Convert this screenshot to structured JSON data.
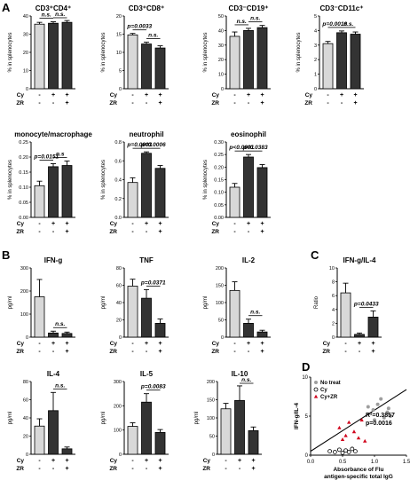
{
  "panel_letters": [
    "A",
    "B",
    "C",
    "D"
  ],
  "groups": [
    "Cy",
    "ZR"
  ],
  "signs": [
    "-",
    "+"
  ],
  "chart_data": [
    {
      "id": "cd4",
      "type": "bar",
      "title": "CD3⁺CD4⁺",
      "ylabel": "% in splenocytes",
      "ylim": [
        0,
        40
      ],
      "yticks": [
        "0",
        "10",
        "20",
        "30",
        "40"
      ],
      "values": [
        35.5,
        36,
        36.5
      ],
      "errors": [
        1,
        0.8,
        1
      ],
      "cy": [
        "-",
        "+",
        "+"
      ],
      "zr": [
        "-",
        "-",
        "+"
      ],
      "annotations": [
        {
          "text": "n.s.",
          "from": 0,
          "to": 1
        },
        {
          "text": "n.s.",
          "from": 1,
          "to": 2
        }
      ]
    },
    {
      "id": "cd8",
      "type": "bar",
      "title": "CD3⁺CD8⁺",
      "ylabel": "% in splenocytes",
      "ylim": [
        0,
        20
      ],
      "yticks": [
        "0",
        "5",
        "10",
        "15",
        "20"
      ],
      "values": [
        14.8,
        12.3,
        11.2
      ],
      "errors": [
        0.4,
        0.5,
        0.6
      ],
      "cy": [
        "-",
        "+",
        "+"
      ],
      "zr": [
        "-",
        "-",
        "+"
      ],
      "annotations": [
        {
          "text": "p=0.0033",
          "from": 0,
          "to": 1
        },
        {
          "text": "n.s.",
          "from": 1,
          "to": 2
        }
      ]
    },
    {
      "id": "cd19",
      "type": "bar",
      "title": "CD3⁻CD19⁺",
      "ylabel": "% in splenocytes",
      "ylim": [
        0,
        50
      ],
      "yticks": [
        "0",
        "10",
        "20",
        "30",
        "40",
        "50"
      ],
      "values": [
        36,
        40,
        42
      ],
      "errors": [
        3,
        1.5,
        1.5
      ],
      "cy": [
        "-",
        "+",
        "+"
      ],
      "zr": [
        "-",
        "-",
        "+"
      ],
      "annotations": [
        {
          "text": "n.s.",
          "from": 0,
          "to": 1
        },
        {
          "text": "n.s.",
          "from": 1,
          "to": 2
        }
      ]
    },
    {
      "id": "cd11c",
      "type": "bar",
      "title": "CD3⁻CD11c⁺",
      "ylabel": "% in splenocytes",
      "ylim": [
        0,
        5
      ],
      "yticks": [
        "0",
        "1",
        "2",
        "3",
        "4",
        "5"
      ],
      "values": [
        3.1,
        3.85,
        3.75
      ],
      "errors": [
        0.15,
        0.12,
        0.15
      ],
      "cy": [
        "-",
        "+",
        "+"
      ],
      "zr": [
        "-",
        "-",
        "+"
      ],
      "annotations": [
        {
          "text": "p=0.0018",
          "from": 0,
          "to": 1
        },
        {
          "text": "n.s.",
          "from": 1,
          "to": 2
        }
      ]
    },
    {
      "id": "mono",
      "type": "bar",
      "title": "monocyte/macrophage",
      "ylabel": "% in splenocytes",
      "ylim": [
        0,
        0.25
      ],
      "yticks": [
        "0.00",
        "0.05",
        "0.10",
        "0.15",
        "0.20",
        "0.25"
      ],
      "values": [
        0.105,
        0.168,
        0.172
      ],
      "errors": [
        0.015,
        0.01,
        0.015
      ],
      "cy": [
        "-",
        "+",
        "+"
      ],
      "zr": [
        "-",
        "-",
        "+"
      ],
      "annotations": [
        {
          "text": "p=0.0151",
          "from": 0,
          "to": 1
        },
        {
          "text": "n.s",
          "from": 1,
          "to": 2
        }
      ]
    },
    {
      "id": "neut",
      "type": "bar",
      "title": "neutrophil",
      "ylabel": "% in splenocytes",
      "ylim": [
        0,
        0.8
      ],
      "yticks": [
        "0.0",
        "0.2",
        "0.4",
        "0.6",
        "0.8"
      ],
      "values": [
        0.37,
        0.68,
        0.52
      ],
      "errors": [
        0.05,
        0.015,
        0.03
      ],
      "cy": [
        "-",
        "+",
        "+"
      ],
      "zr": [
        "-",
        "-",
        "+"
      ],
      "annotations": [
        {
          "text": "p=0.0003",
          "from": 0,
          "to": 1
        },
        {
          "text": "p=0.0006",
          "from": 1,
          "to": 2
        }
      ]
    },
    {
      "id": "eos",
      "type": "bar",
      "title": "eosinophil",
      "ylabel": "% in splenocytes",
      "ylim": [
        0,
        0.3
      ],
      "yticks": [
        "0.00",
        "0.05",
        "0.10",
        "0.15",
        "0.20",
        "0.25",
        "0.30"
      ],
      "values": [
        0.12,
        0.24,
        0.198
      ],
      "errors": [
        0.015,
        0.01,
        0.012
      ],
      "cy": [
        "-",
        "+",
        "+"
      ],
      "zr": [
        "-",
        "-",
        "+"
      ],
      "annotations": [
        {
          "text": "p<0.0001",
          "from": 0,
          "to": 1
        },
        {
          "text": "p=0.0383",
          "from": 1,
          "to": 2
        }
      ]
    },
    {
      "id": "ifng",
      "type": "bar",
      "title": "IFN-g",
      "ylabel": "pg/ml",
      "ylim": [
        0,
        300
      ],
      "yticks": [
        "0",
        "100",
        "200",
        "300"
      ],
      "values": [
        175,
        18,
        16
      ],
      "errors": [
        75,
        8,
        6
      ],
      "cy": [
        "-",
        "+",
        "+"
      ],
      "zr": [
        "-",
        "-",
        "+"
      ],
      "annotations": [
        {
          "text": "n.s.",
          "from": 1,
          "to": 2
        }
      ]
    },
    {
      "id": "tnf",
      "type": "bar",
      "title": "TNF",
      "ylabel": "pg/ml",
      "ylim": [
        0,
        80
      ],
      "yticks": [
        "0",
        "20",
        "40",
        "60",
        "80"
      ],
      "values": [
        59,
        45,
        16
      ],
      "errors": [
        8,
        10,
        5
      ],
      "cy": [
        "-",
        "+",
        "+"
      ],
      "zr": [
        "-",
        "-",
        "+"
      ],
      "annotations": [
        {
          "text": "p=0.0371",
          "from": 1,
          "to": 2
        }
      ]
    },
    {
      "id": "il2",
      "type": "bar",
      "title": "IL-2",
      "ylabel": "pg/ml",
      "ylim": [
        0,
        200
      ],
      "yticks": [
        "0",
        "50",
        "100",
        "150",
        "200"
      ],
      "values": [
        135,
        40,
        15
      ],
      "errors": [
        25,
        12,
        5
      ],
      "cy": [
        "-",
        "+",
        "+"
      ],
      "zr": [
        "-",
        "-",
        "+"
      ],
      "annotations": [
        {
          "text": "n.s.",
          "from": 1,
          "to": 2
        }
      ]
    },
    {
      "id": "ratio",
      "type": "bar",
      "title": "IFN-g/IL-4",
      "ylabel": "Ratio",
      "ylim": [
        0,
        10
      ],
      "yticks": [
        "0",
        "2",
        "4",
        "6",
        "8",
        "10"
      ],
      "values": [
        6.4,
        0.4,
        2.9
      ],
      "errors": [
        1.4,
        0.2,
        0.9
      ],
      "cy": [
        "-",
        "+",
        "+"
      ],
      "zr": [
        "-",
        "-",
        "+"
      ],
      "annotations": [
        {
          "text": "p=0.0433",
          "from": 1,
          "to": 2
        }
      ]
    },
    {
      "id": "il4",
      "type": "bar",
      "title": "IL-4",
      "ylabel": "pg/ml",
      "ylim": [
        0,
        80
      ],
      "yticks": [
        "0",
        "20",
        "40",
        "60",
        "80"
      ],
      "values": [
        31,
        48,
        6
      ],
      "errors": [
        8,
        20,
        2
      ],
      "cy": [
        "-",
        "+",
        "+"
      ],
      "zr": [
        "-",
        "-",
        "+"
      ],
      "annotations": [
        {
          "text": "n.s.",
          "from": 1,
          "to": 2
        }
      ]
    },
    {
      "id": "il5",
      "type": "bar",
      "title": "IL-5",
      "ylabel": "pg/ml",
      "ylim": [
        0,
        300
      ],
      "yticks": [
        "0",
        "100",
        "200",
        "300"
      ],
      "values": [
        115,
        215,
        90
      ],
      "errors": [
        15,
        35,
        12
      ],
      "cy": [
        "-",
        "+",
        "+"
      ],
      "zr": [
        "-",
        "-",
        "+"
      ],
      "annotations": [
        {
          "text": "p=0.0083",
          "from": 1,
          "to": 2
        }
      ]
    },
    {
      "id": "il10",
      "type": "bar",
      "title": "IL-10",
      "ylabel": "pg/ml",
      "ylim": [
        0,
        200
      ],
      "yticks": [
        "0",
        "50",
        "100",
        "150",
        "200"
      ],
      "values": [
        125,
        148,
        65
      ],
      "errors": [
        15,
        40,
        10
      ],
      "cy": [
        "-",
        "+",
        "+"
      ],
      "zr": [
        "-",
        "-",
        "+"
      ],
      "annotations": [
        {
          "text": "n.s.",
          "from": 1,
          "to": 2
        }
      ]
    },
    {
      "id": "scatter",
      "type": "scatter",
      "ylabel": "IFN-g/IL-4",
      "xlabel": "Absorbance of Flu antigen-specific total IgG",
      "xlim": [
        0,
        1.5
      ],
      "ylim": [
        0,
        10
      ],
      "xticks": [
        "0.0",
        "0.5",
        "1.0",
        "1.5"
      ],
      "yticks": [
        "0",
        "5",
        "10"
      ],
      "legend": [
        "No treat",
        "Cy",
        "Cy+ZR"
      ],
      "annotation": [
        "R²=0.3857",
        "p=0.0016"
      ],
      "line": {
        "x": [
          0.0,
          1.5
        ],
        "y": [
          0.5,
          8.4
        ]
      },
      "series": [
        {
          "name": "No treat",
          "color": "#9e9e9e",
          "points": [
            [
              0.98,
              5.8
            ],
            [
              1.05,
              6.5
            ],
            [
              1.1,
              7.2
            ],
            [
              1.15,
              4.8
            ],
            [
              1.2,
              5.5
            ],
            [
              1.22,
              6.0
            ],
            [
              1.25,
              5.0
            ],
            [
              1.0,
              4.5
            ],
            [
              0.9,
              6.2
            ]
          ]
        },
        {
          "name": "Cy",
          "color": "#000000",
          "points": [
            [
              0.3,
              0.5
            ],
            [
              0.38,
              0.4
            ],
            [
              0.45,
              0.7
            ],
            [
              0.5,
              0.3
            ],
            [
              0.55,
              0.6
            ],
            [
              0.6,
              0.4
            ],
            [
              0.65,
              0.8
            ],
            [
              0.7,
              0.5
            ]
          ]
        },
        {
          "name": "Cy+ZR",
          "color": "#d0021b",
          "points": [
            [
              0.45,
              3.5
            ],
            [
              0.55,
              2.5
            ],
            [
              0.6,
              4.2
            ],
            [
              0.68,
              3.0
            ],
            [
              0.75,
              2.2
            ],
            [
              0.8,
              4.5
            ],
            [
              0.85,
              1.8
            ],
            [
              0.5,
              2.0
            ]
          ]
        }
      ]
    }
  ]
}
